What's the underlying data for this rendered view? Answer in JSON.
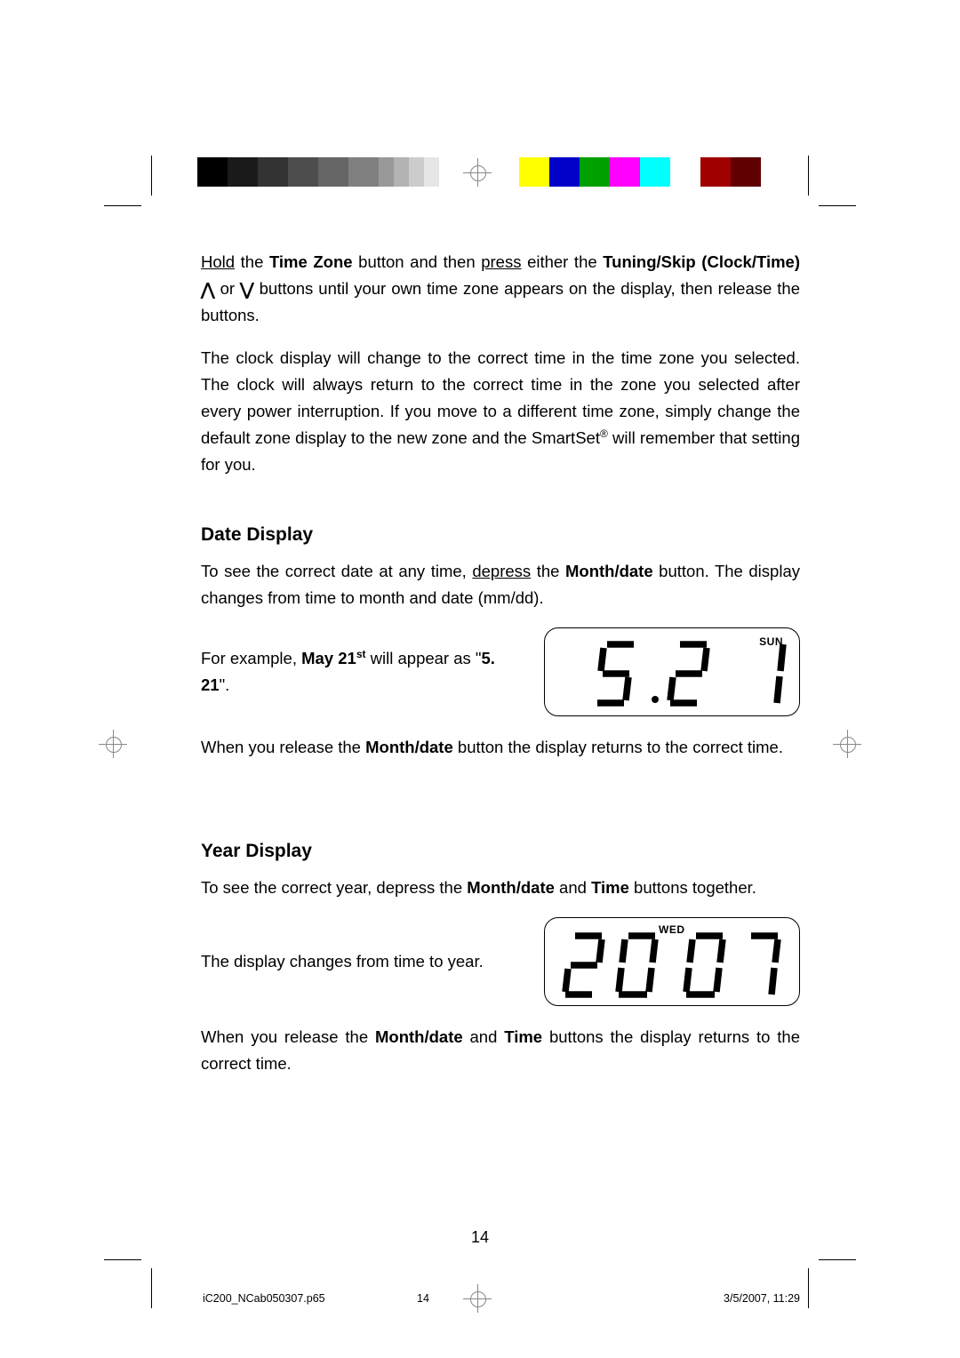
{
  "gray_bar": [
    "#000000",
    "#1a1a1a",
    "#333333",
    "#4d4d4d",
    "#666666",
    "#808080",
    "#999999",
    "#b3b3b3",
    "#cccccc",
    "#e6e6e6"
  ],
  "color_bar": [
    "#ffff00",
    "#0000c8",
    "#00a000",
    "#ff00ff",
    "#00ffff",
    "#ffffff",
    "#a00000",
    "#600000"
  ],
  "para1_pre": "Hold",
  "para1_a": " the ",
  "para1_b": "Time Zone",
  "para1_c": " button and then ",
  "para1_press": "press",
  "para1_d": " either the ",
  "para1_e": "Tuning/Skip (Clock/Time)",
  "para1_f": " or ",
  "para1_g": " buttons until your own time zone appears on the display, then release the buttons.",
  "para2_a": "The clock display will change to the correct time in the time zone you selected. The clock will always return to the correct time in the zone you selected after every power interruption. If you move to a different time zone, simply change the default zone display to the new zone and the SmartSet",
  "para2_b": " will remember that setting for you.",
  "h_date": "Date Display",
  "date_p1_a": "To see the correct date at any time, ",
  "date_p1_dep": "depress",
  "date_p1_b": " the ",
  "date_p1_c": "Month/date",
  "date_p1_d": " button. The display changes from time to month and date (mm/dd).",
  "date_ex_a": "For example, ",
  "date_ex_b": "May 21",
  "date_ex_sup": "st",
  "date_ex_c": " will appear as \"",
  "date_ex_d": "5. 21",
  "date_ex_e": "\".",
  "date_lcd_day": "SUN",
  "date_p2_a": "When you release the ",
  "date_p2_b": "Month/date",
  "date_p2_c": " button the display returns to the correct time.",
  "h_year": "Year Display",
  "year_p1_a": "To see the correct year, depress the ",
  "year_p1_b": "Month/date",
  "year_p1_c": " and ",
  "year_p1_d": "Time",
  "year_p1_e": " buttons together.",
  "year_ex": "The display changes from time to year.",
  "year_lcd_day": "WED",
  "year_p2_a": "When you release the ",
  "year_p2_b": "Month/date",
  "year_p2_c": " and ",
  "year_p2_d": "Time",
  "year_p2_e": " buttons the display returns to the correct time.",
  "page_num": "14",
  "footer_file": "iC200_NCab050307.p65",
  "footer_page": "14",
  "footer_date": "3/5/2007, 11:29"
}
